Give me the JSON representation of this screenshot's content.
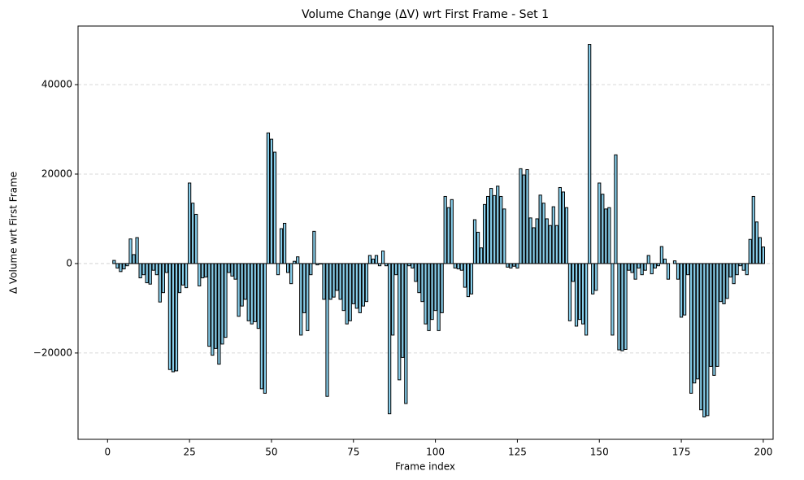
{
  "chart_data": {
    "type": "bar",
    "title": "Volume Change (ΔV) wrt First Frame - Set 1",
    "xlabel": "Frame index",
    "ylabel": "Δ Volume wrt First Frame",
    "color": "#87ceeb",
    "edgecolor": "#000000",
    "grid": true,
    "x": [
      1,
      2,
      3,
      4,
      5,
      6,
      7,
      8,
      9,
      10,
      11,
      12,
      13,
      14,
      15,
      16,
      17,
      18,
      19,
      20,
      21,
      22,
      23,
      24,
      25,
      26,
      27,
      28,
      29,
      30,
      31,
      32,
      33,
      34,
      35,
      36,
      37,
      38,
      39,
      40,
      41,
      42,
      43,
      44,
      45,
      46,
      47,
      48,
      49,
      50,
      51,
      52,
      53,
      54,
      55,
      56,
      57,
      58,
      59,
      60,
      61,
      62,
      63,
      64,
      65,
      66,
      67,
      68,
      69,
      70,
      71,
      72,
      73,
      74,
      75,
      76,
      77,
      78,
      79,
      80,
      81,
      82,
      83,
      84,
      85,
      86,
      87,
      88,
      89,
      90,
      91,
      92,
      93,
      94,
      95,
      96,
      97,
      98,
      99,
      100,
      101,
      102,
      103,
      104,
      105,
      106,
      107,
      108,
      109,
      110,
      111,
      112,
      113,
      114,
      115,
      116,
      117,
      118,
      119,
      120,
      121,
      122,
      123,
      124,
      125,
      126,
      127,
      128,
      129,
      130,
      131,
      132,
      133,
      134,
      135,
      136,
      137,
      138,
      139,
      140,
      141,
      142,
      143,
      144,
      145,
      146,
      147,
      148,
      149,
      150,
      151,
      152,
      153,
      154,
      155,
      156,
      157,
      158,
      159,
      160,
      161,
      162,
      163,
      164,
      165,
      166,
      167,
      168,
      169,
      170,
      171,
      172,
      173,
      174,
      175,
      176,
      177,
      178,
      179,
      180,
      181,
      182,
      183,
      184,
      185,
      186,
      187,
      188,
      189,
      190,
      191,
      192,
      193,
      194,
      195,
      196,
      197,
      198,
      199,
      200
    ],
    "values": [
      0,
      700,
      -1000,
      -1800,
      -1200,
      -500,
      5500,
      2000,
      5800,
      -3200,
      -2500,
      -4300,
      -4600,
      -1500,
      -2500,
      -8600,
      -6500,
      -2000,
      -23700,
      -24200,
      -24000,
      -6500,
      -4800,
      -5400,
      18000,
      13500,
      11000,
      -5000,
      -3200,
      -3000,
      -18500,
      -20500,
      -19000,
      -22500,
      -18000,
      -16500,
      -2000,
      -2800,
      -3500,
      -11800,
      -9500,
      -8000,
      -12800,
      -13500,
      -13000,
      -14500,
      -28000,
      -29000,
      29200,
      27800,
      24900,
      -2500,
      7800,
      9000,
      -2000,
      -4500,
      500,
      1500,
      -16000,
      -11000,
      -15000,
      -2500,
      7200,
      -300,
      -100,
      -8000,
      -29700,
      -8000,
      -7500,
      -6000,
      -8000,
      -10500,
      -13500,
      -12800,
      -9000,
      -10000,
      -11000,
      -9500,
      -8500,
      1800,
      1000,
      1800,
      -500,
      2800,
      -500,
      -33600,
      -16000,
      -2500,
      -26000,
      -21000,
      -31300,
      -500,
      -1000,
      -4000,
      -6500,
      -8500,
      -13500,
      -15000,
      -12500,
      -10500,
      -15000,
      -11000,
      15000,
      12500,
      14300,
      -1000,
      -1200,
      -1500,
      -5300,
      -7400,
      -6800,
      9800,
      7000,
      3500,
      13200,
      15000,
      16800,
      15200,
      17300,
      15000,
      12200,
      -800,
      -1000,
      -600,
      -1000,
      21200,
      19800,
      21000,
      10200,
      8000,
      10000,
      15300,
      13500,
      10000,
      8500,
      12700,
      8500,
      17000,
      16000,
      12500,
      -12800,
      -4000,
      -14000,
      -12500,
      -13500,
      -16000,
      49000,
      -6800,
      -6000,
      18000,
      15500,
      12200,
      12500,
      -16000,
      24300,
      -19300,
      -19500,
      -19200,
      -1500,
      -2000,
      -3500,
      -1000,
      -2500,
      -1500,
      1800,
      -2300,
      -1000,
      -500,
      3800,
      1000,
      -3500,
      0,
      600,
      -3500,
      -12000,
      -11500,
      -2500,
      -29000,
      -26700,
      -25800,
      -32700,
      -34300,
      -34000,
      -23000,
      -25000,
      -23000,
      -8500,
      -9000,
      -7800,
      -3000,
      -4500,
      -2500,
      -500,
      -1500,
      -2500,
      5400,
      15000,
      9300,
      5800,
      3700
    ],
    "xlim": [
      -9,
      203
    ],
    "xticks": [
      0,
      25,
      50,
      75,
      100,
      125,
      150,
      175,
      200
    ],
    "ylim": [
      -39300,
      53100
    ],
    "yticks": [
      {
        "value": -20000,
        "label": "−20000"
      },
      0,
      20000,
      40000
    ]
  }
}
